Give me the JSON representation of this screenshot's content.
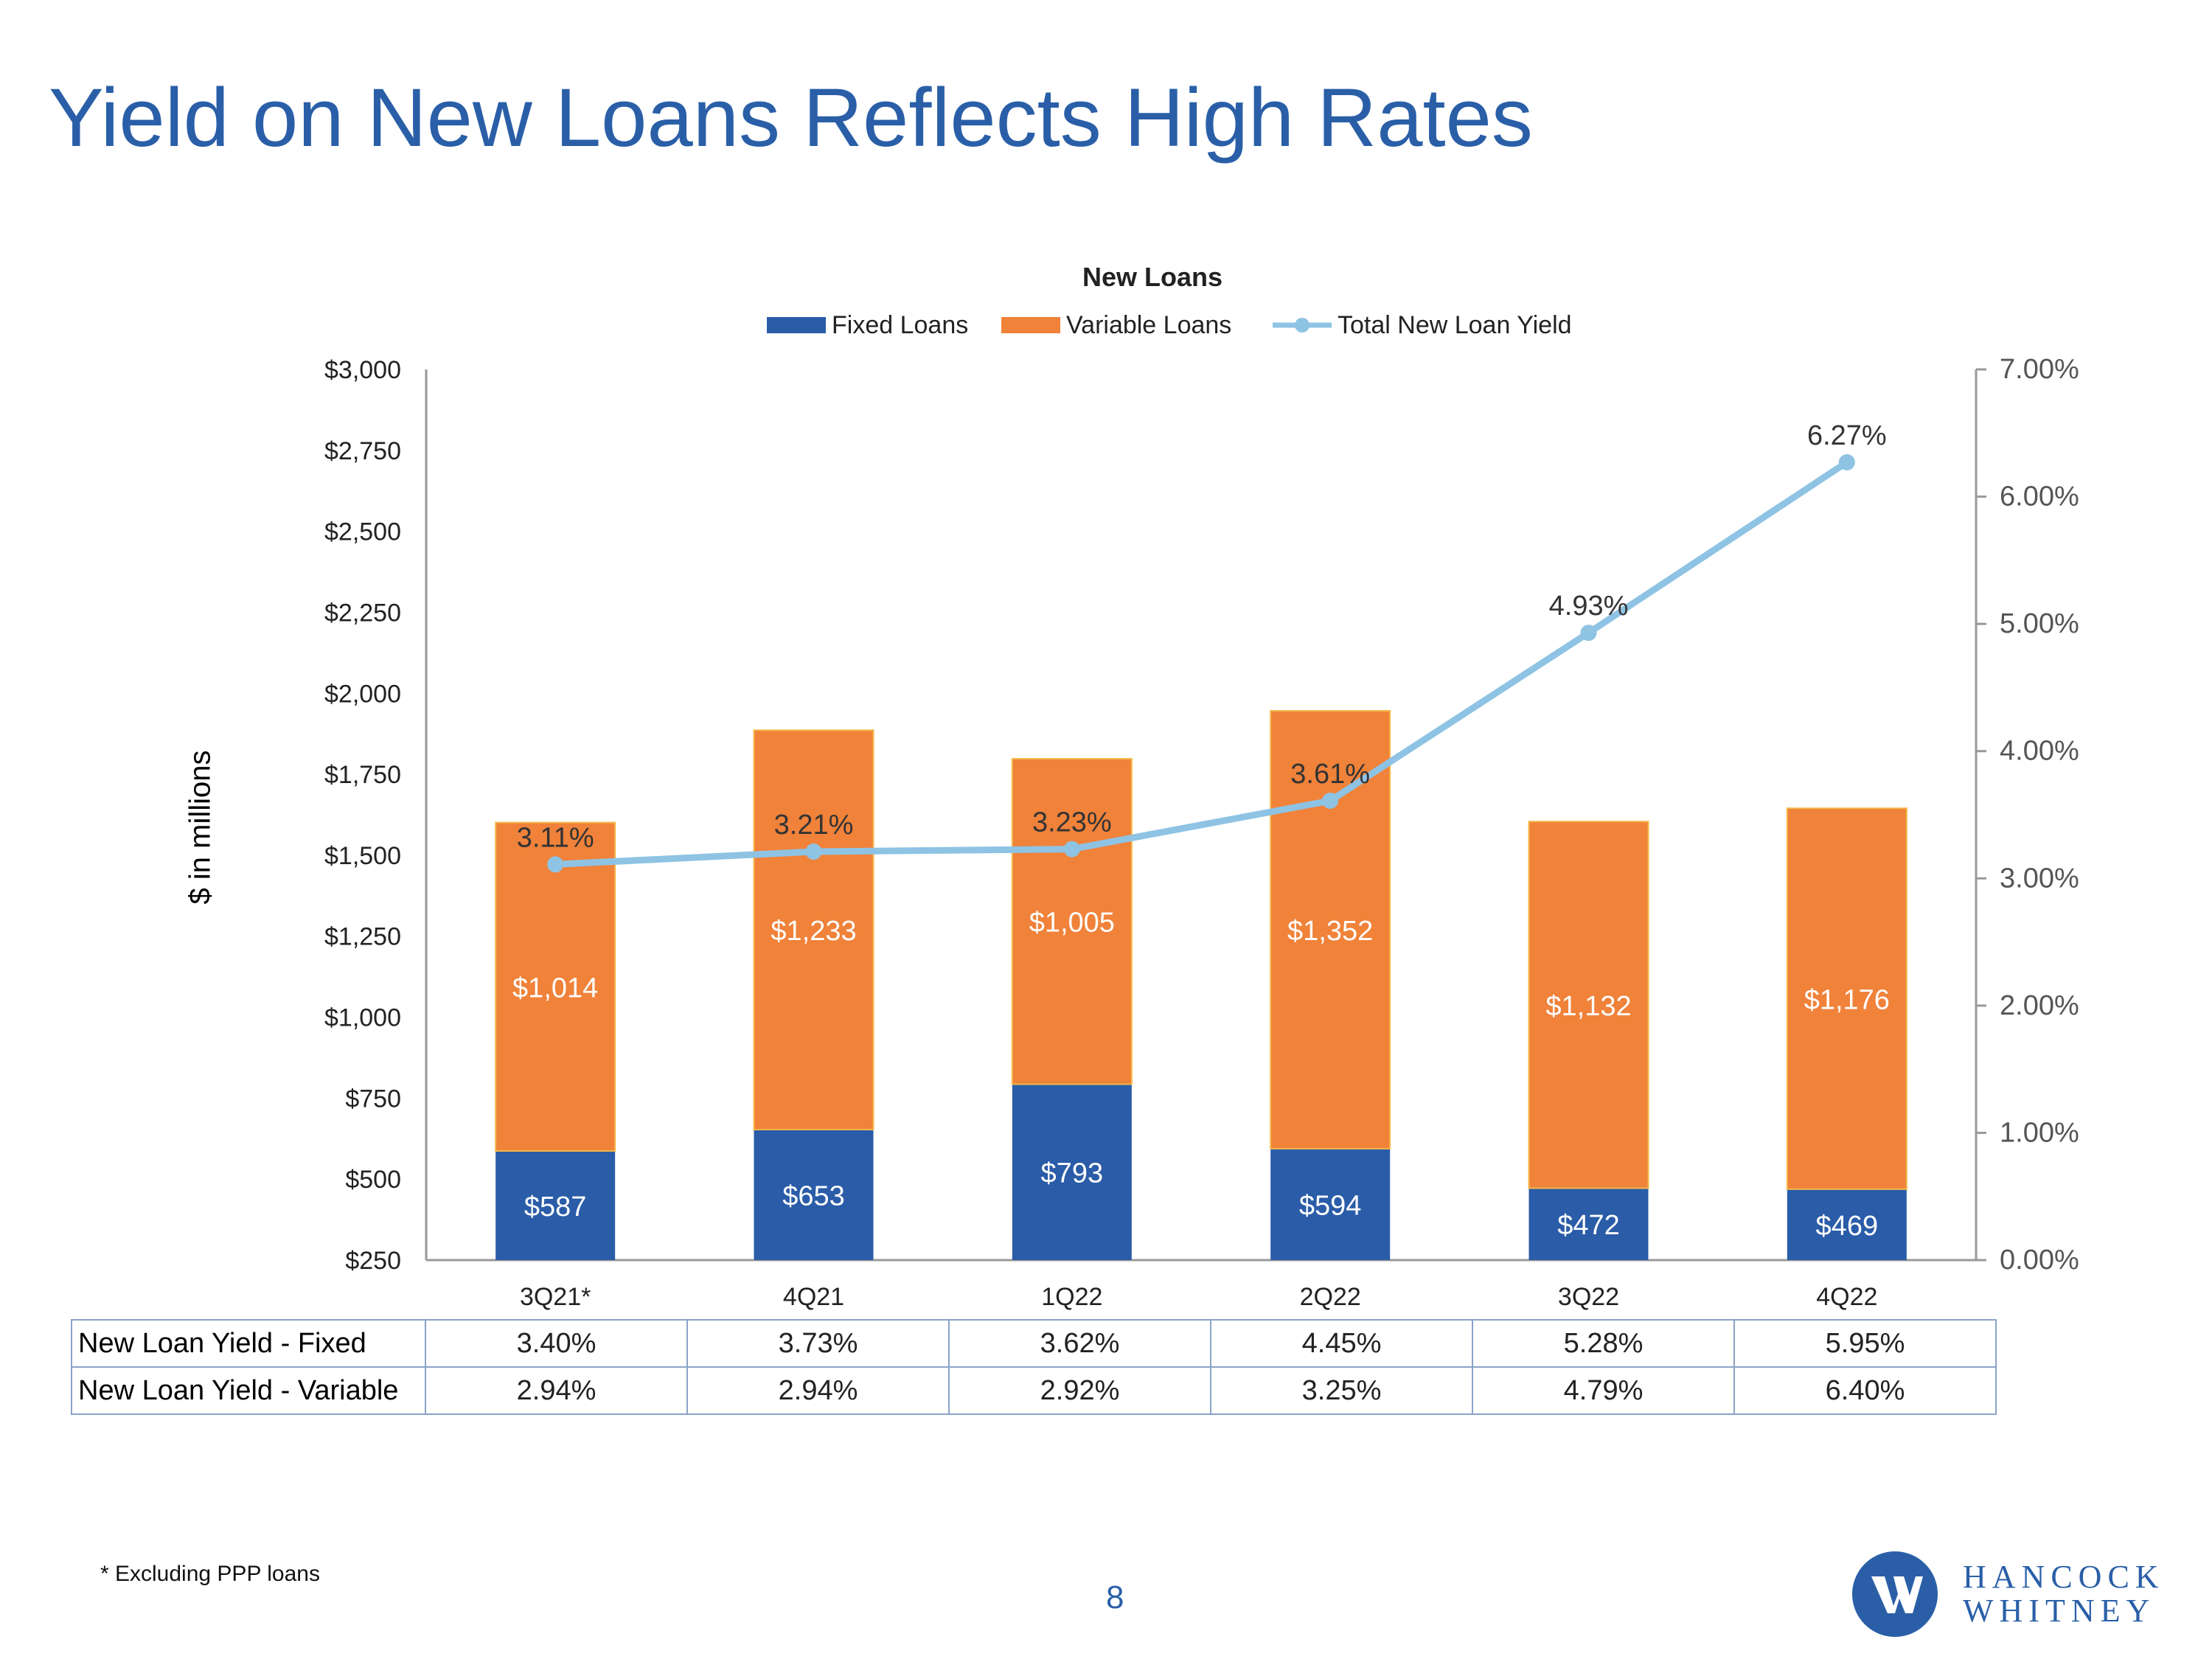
{
  "page": {
    "title": "Yield on New Loans Reflects High Rates",
    "footnote": "* Excluding PPP loans",
    "page_number": "8",
    "logo_line1": "HANCOCK",
    "logo_line2": "WHITNEY"
  },
  "colors": {
    "fixed": "#2a5ca8",
    "variable": "#f0823a",
    "yield": "#8ec3e4",
    "brand": "#2a5fa8"
  },
  "chart_data": {
    "type": "bar",
    "title": "New Loans",
    "ylabel": "$ in millions",
    "categories": [
      "3Q21*",
      "4Q21",
      "1Q22",
      "2Q22",
      "3Q22",
      "4Q22"
    ],
    "series": [
      {
        "name": "Fixed Loans",
        "kind": "bar-stacked",
        "values": [
          587,
          653,
          793,
          594,
          472,
          469
        ],
        "labels": [
          "$587",
          "$653",
          "$793",
          "$594",
          "$472",
          "$469"
        ]
      },
      {
        "name": "Variable Loans",
        "kind": "bar-stacked",
        "values": [
          1014,
          1233,
          1005,
          1352,
          1132,
          1176
        ],
        "labels": [
          "$1,014",
          "$1,233",
          "$1,005",
          "$1,352",
          "$1,132",
          "$1,176"
        ]
      },
      {
        "name": "Total New Loan Yield",
        "kind": "line",
        "axis": "right",
        "values": [
          3.11,
          3.21,
          3.23,
          3.61,
          4.93,
          6.27
        ],
        "labels": [
          "3.11%",
          "3.21%",
          "3.23%",
          "3.61%",
          "4.93%",
          "6.27%"
        ]
      }
    ],
    "ylim_left": [
      250,
      3000
    ],
    "ylim_right": [
      0,
      7
    ],
    "left_ticks": [
      "$250",
      "$500",
      "$750",
      "$1,000",
      "$1,250",
      "$1,500",
      "$1,750",
      "$2,000",
      "$2,250",
      "$2,500",
      "$2,750",
      "$3,000"
    ],
    "left_tick_values": [
      250,
      500,
      750,
      1000,
      1250,
      1500,
      1750,
      2000,
      2250,
      2500,
      2750,
      3000
    ],
    "right_ticks": [
      "0.00%",
      "1.00%",
      "2.00%",
      "3.00%",
      "4.00%",
      "5.00%",
      "6.00%",
      "7.00%"
    ],
    "right_tick_values": [
      0,
      1,
      2,
      3,
      4,
      5,
      6,
      7
    ],
    "legend": "top-center"
  },
  "table": {
    "rows": [
      {
        "label": "New Loan Yield - Fixed",
        "values": [
          "3.40%",
          "3.73%",
          "3.62%",
          "4.45%",
          "5.28%",
          "5.95%"
        ]
      },
      {
        "label": "New Loan Yield - Variable",
        "values": [
          "2.94%",
          "2.94%",
          "2.92%",
          "3.25%",
          "4.79%",
          "6.40%"
        ]
      }
    ]
  }
}
